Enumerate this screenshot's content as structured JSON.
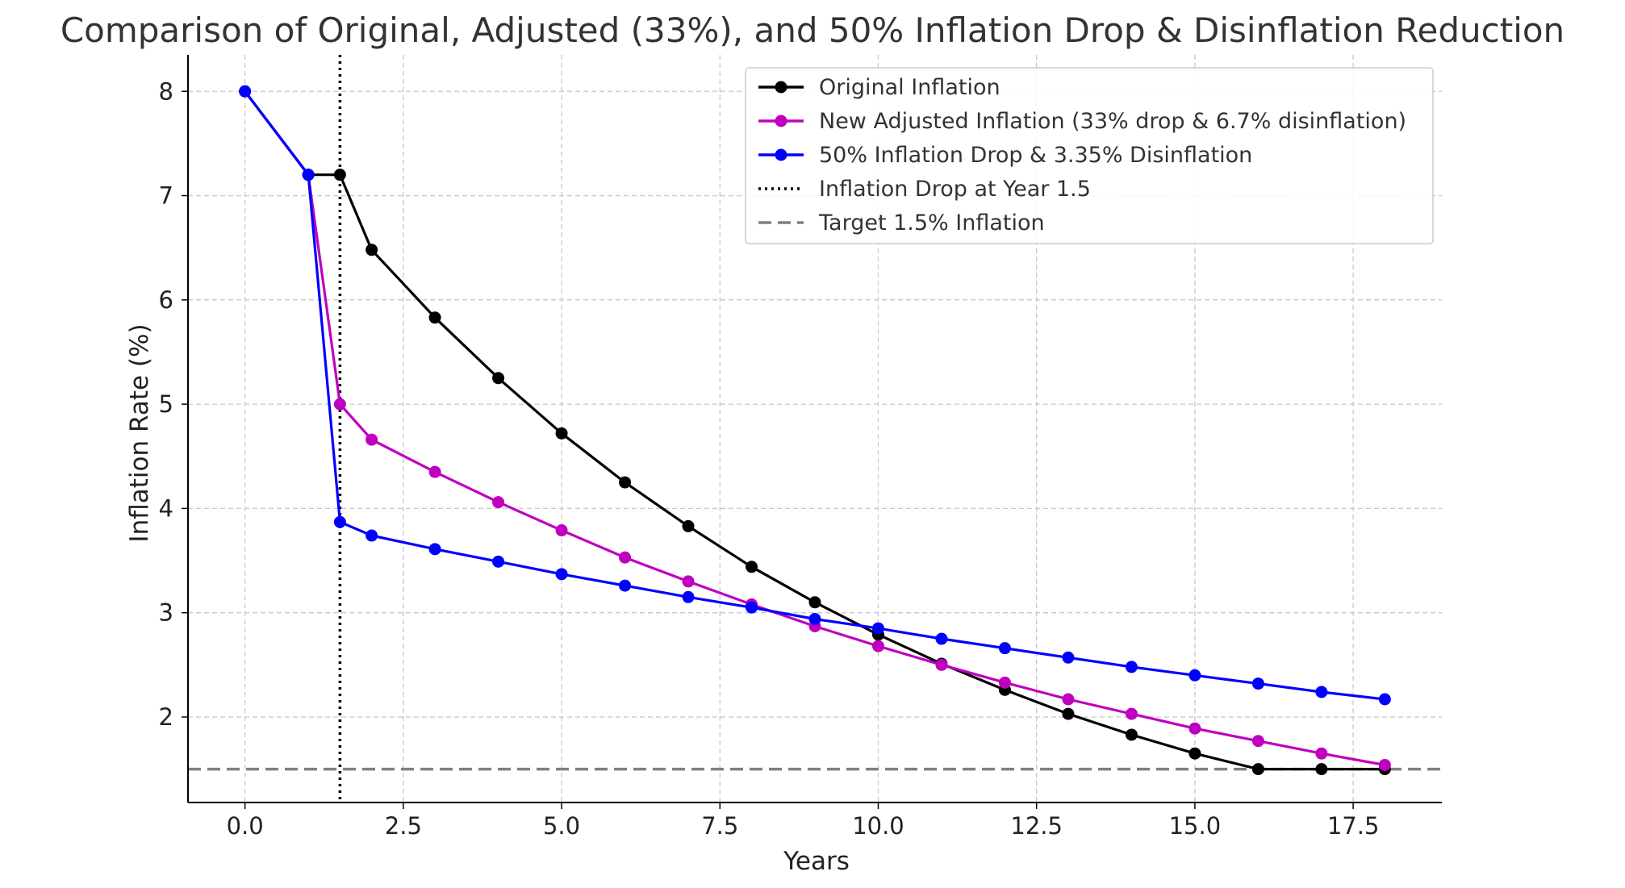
{
  "chart_data": {
    "type": "line",
    "title": "Comparison of Original, Adjusted (33%), and 50% Inflation Drop & Disinflation Reduction",
    "xlabel": "Years",
    "ylabel": "Inflation Rate (%)",
    "xlim": [
      -0.9,
      18.9
    ],
    "ylim": [
      1.18,
      8.35
    ],
    "x_ticks": [
      0.0,
      2.5,
      5.0,
      7.5,
      10.0,
      12.5,
      15.0,
      17.5
    ],
    "x_tick_labels": [
      "0.0",
      "2.5",
      "5.0",
      "7.5",
      "10.0",
      "12.5",
      "15.0",
      "17.5"
    ],
    "y_ticks": [
      2,
      3,
      4,
      5,
      6,
      7,
      8
    ],
    "y_tick_labels": [
      "2",
      "3",
      "4",
      "5",
      "6",
      "7",
      "8"
    ],
    "grid": true,
    "legend_position": "top-right",
    "series": [
      {
        "name": "Original Inflation",
        "color": "#000000",
        "marker": "circle",
        "points": [
          [
            0,
            8.0
          ],
          [
            1,
            7.2
          ],
          [
            1.5,
            7.2
          ],
          [
            2,
            6.48
          ],
          [
            3,
            5.83
          ],
          [
            4,
            5.25
          ],
          [
            5,
            4.72
          ],
          [
            6,
            4.25
          ],
          [
            7,
            3.83
          ],
          [
            8,
            3.44
          ],
          [
            9,
            3.1
          ],
          [
            10,
            2.79
          ],
          [
            11,
            2.51
          ],
          [
            12,
            2.26
          ],
          [
            13,
            2.03
          ],
          [
            14,
            1.83
          ],
          [
            15,
            1.65
          ],
          [
            16,
            1.5
          ],
          [
            17,
            1.5
          ],
          [
            18,
            1.5
          ]
        ]
      },
      {
        "name": "New Adjusted Inflation (33% drop & 6.7% disinflation)",
        "color": "#bf00bf",
        "marker": "circle",
        "points": [
          [
            0,
            8.0
          ],
          [
            1,
            7.2
          ],
          [
            1.5,
            5.0
          ],
          [
            2,
            4.66
          ],
          [
            3,
            4.35
          ],
          [
            4,
            4.06
          ],
          [
            5,
            3.79
          ],
          [
            6,
            3.53
          ],
          [
            7,
            3.3
          ],
          [
            8,
            3.08
          ],
          [
            9,
            2.87
          ],
          [
            10,
            2.68
          ],
          [
            11,
            2.5
          ],
          [
            12,
            2.33
          ],
          [
            13,
            2.17
          ],
          [
            14,
            2.03
          ],
          [
            15,
            1.89
          ],
          [
            16,
            1.77
          ],
          [
            17,
            1.65
          ],
          [
            18,
            1.54
          ]
        ]
      },
      {
        "name": "50% Inflation Drop & 3.35% Disinflation",
        "color": "#0000ff",
        "marker": "circle",
        "points": [
          [
            0,
            8.0
          ],
          [
            1,
            7.2
          ],
          [
            1.5,
            3.87
          ],
          [
            2,
            3.74
          ],
          [
            3,
            3.61
          ],
          [
            4,
            3.49
          ],
          [
            5,
            3.37
          ],
          [
            6,
            3.26
          ],
          [
            7,
            3.15
          ],
          [
            8,
            3.05
          ],
          [
            9,
            2.94
          ],
          [
            10,
            2.85
          ],
          [
            11,
            2.75
          ],
          [
            12,
            2.66
          ],
          [
            13,
            2.57
          ],
          [
            14,
            2.48
          ],
          [
            15,
            2.4
          ],
          [
            16,
            2.32
          ],
          [
            17,
            2.24
          ],
          [
            18,
            2.17
          ]
        ]
      }
    ],
    "reference_lines": [
      {
        "name": "Inflation Drop at Year 1.5",
        "orientation": "vertical",
        "value": 1.5,
        "color": "#000000",
        "style": "dotted"
      },
      {
        "name": "Target 1.5% Inflation",
        "orientation": "horizontal",
        "value": 1.5,
        "color": "#808080",
        "style": "dashed"
      }
    ]
  }
}
